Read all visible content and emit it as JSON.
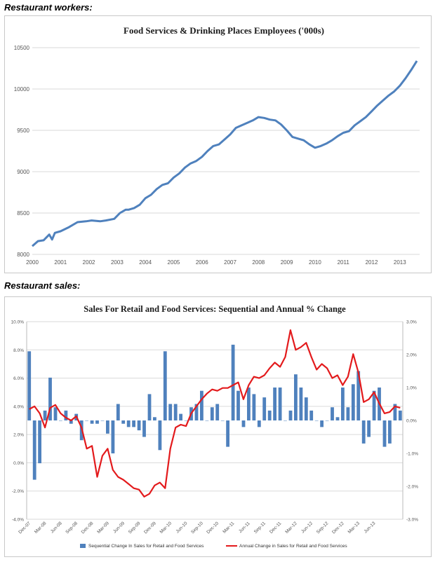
{
  "captions": {
    "workers": "Restaurant workers:",
    "sales": "Restaurant sales:"
  },
  "chart_data": [
    {
      "type": "line",
      "title": "Food Services & Drinking Places Employees ('000s)",
      "xlabel": "",
      "ylabel": "",
      "x_ticks": [
        "2000",
        "2001",
        "2002",
        "2003",
        "2004",
        "2005",
        "2006",
        "2007",
        "2008",
        "2009",
        "2010",
        "2011",
        "2012",
        "2013"
      ],
      "y_ticks": [
        "8000",
        "8500",
        "9000",
        "9500",
        "10000",
        "10500"
      ],
      "ylim": [
        8000,
        10500
      ],
      "xlim": [
        2000,
        2013.7
      ],
      "grid": true,
      "color": "#4f81bd",
      "series": [
        {
          "name": "Employees",
          "x": [
            2000.0,
            2000.2,
            2000.4,
            2000.6,
            2000.7,
            2000.8,
            2001.0,
            2001.3,
            2001.6,
            2001.9,
            2002.1,
            2002.4,
            2002.6,
            2002.9,
            2003.1,
            2003.3,
            2003.4,
            2003.6,
            2003.8,
            2004.0,
            2004.2,
            2004.4,
            2004.6,
            2004.8,
            2005.0,
            2005.2,
            2005.4,
            2005.6,
            2005.8,
            2006.0,
            2006.2,
            2006.4,
            2006.6,
            2006.8,
            2007.0,
            2007.2,
            2007.4,
            2007.6,
            2007.8,
            2008.0,
            2008.2,
            2008.4,
            2008.6,
            2008.8,
            2009.0,
            2009.2,
            2009.4,
            2009.6,
            2009.8,
            2010.0,
            2010.2,
            2010.4,
            2010.6,
            2010.8,
            2011.0,
            2011.2,
            2011.4,
            2011.6,
            2011.8,
            2012.0,
            2012.2,
            2012.4,
            2012.6,
            2012.8,
            2013.0,
            2013.2,
            2013.4,
            2013.6
          ],
          "values": [
            8100,
            8160,
            8170,
            8240,
            8180,
            8260,
            8280,
            8330,
            8390,
            8400,
            8410,
            8400,
            8410,
            8430,
            8500,
            8540,
            8540,
            8560,
            8600,
            8680,
            8720,
            8790,
            8840,
            8860,
            8930,
            8980,
            9050,
            9100,
            9130,
            9180,
            9250,
            9310,
            9330,
            9390,
            9450,
            9530,
            9560,
            9590,
            9620,
            9660,
            9650,
            9630,
            9620,
            9570,
            9500,
            9420,
            9400,
            9380,
            9330,
            9290,
            9310,
            9340,
            9380,
            9430,
            9470,
            9490,
            9560,
            9610,
            9660,
            9730,
            9800,
            9860,
            9920,
            9970,
            10040,
            10130,
            10230,
            10340
          ]
        }
      ]
    },
    {
      "type": "bar",
      "title": "Sales For Retail and Food Services: Sequential and Annual % Change",
      "xlabel": "",
      "ylabel": "",
      "x_ticks": [
        "Dec-07",
        "Mar-08",
        "Jun-08",
        "Sep-08",
        "Dec-08",
        "Mar-09",
        "Jun-09",
        "Sep-09",
        "Dec-09",
        "Mar-10",
        "Jun-10",
        "Sep-10",
        "Dec-10",
        "Mar-11",
        "Jun-11",
        "Sep-11",
        "Dec-11",
        "Mar-12",
        "Jun-12",
        "Sep-12",
        "Dec-12",
        "Mar-13",
        "Jun-13"
      ],
      "y_ticks_left": [
        "-4.0%",
        "-2.0%",
        "0.0%",
        "2.0%",
        "4.0%",
        "6.0%",
        "8.0%",
        "10.0%"
      ],
      "y_ticks_right": [
        "-3.0%",
        "-2.0%",
        "-1.0%",
        "0.0%",
        "1.0%",
        "2.0%",
        "3.0%"
      ],
      "ylim_left": [
        -4,
        10
      ],
      "ylim_right": [
        -3,
        3
      ],
      "grid": true,
      "legend_position": "bottom",
      "series": [
        {
          "name": "Sequential Change In Sales for Retail and Food Services",
          "axis": "right",
          "type": "bar",
          "color": "#4f81bd",
          "values": [
            2.1,
            -1.8,
            -1.3,
            0.3,
            1.3,
            0.4,
            0.0,
            0.3,
            -0.1,
            0.2,
            -0.6,
            0.0,
            -0.1,
            -0.1,
            0.0,
            -0.4,
            -1.0,
            0.5,
            -0.1,
            -0.2,
            -0.2,
            -0.3,
            -0.5,
            0.8,
            0.1,
            -0.9,
            2.1,
            0.5,
            0.5,
            0.2,
            0.0,
            0.4,
            0.5,
            0.9,
            0.0,
            0.4,
            0.5,
            0.0,
            -0.8,
            2.3,
            0.9,
            -0.2,
            1.0,
            0.8,
            -0.2,
            0.7,
            0.3,
            1.0,
            1.0,
            0.0,
            0.3,
            1.4,
            1.0,
            0.7,
            0.3,
            0.0,
            -0.2,
            0.0,
            0.4,
            0.1,
            1.0,
            0.4,
            1.1,
            1.5,
            -0.7,
            -0.5,
            0.9,
            1.0,
            -0.8,
            -0.7,
            0.5,
            0.3
          ]
        },
        {
          "name": "Annual Change in Sales for Retail and Food Services",
          "axis": "left",
          "type": "line",
          "color": "#e31a1c",
          "values": [
            3.8,
            4.0,
            3.5,
            2.5,
            3.9,
            4.1,
            3.5,
            3.2,
            3.0,
            3.3,
            2.5,
            1.0,
            1.2,
            -1.0,
            0.5,
            1.0,
            -0.5,
            -1.0,
            -1.2,
            -1.5,
            -1.8,
            -1.9,
            -2.4,
            -2.2,
            -1.6,
            -1.4,
            -1.8,
            1.0,
            2.5,
            2.7,
            2.6,
            3.5,
            4.0,
            4.5,
            4.9,
            5.2,
            5.1,
            5.3,
            5.3,
            5.5,
            5.7,
            4.5,
            5.5,
            6.1,
            6.0,
            6.2,
            6.7,
            7.1,
            6.8,
            7.5,
            9.4,
            8.0,
            8.2,
            8.5,
            7.5,
            6.6,
            7.0,
            6.7,
            6.0,
            6.2,
            5.5,
            6.1,
            7.7,
            6.4,
            4.3,
            4.5,
            5.0,
            4.2,
            3.5,
            3.6,
            4.0,
            3.9
          ]
        }
      ]
    }
  ]
}
